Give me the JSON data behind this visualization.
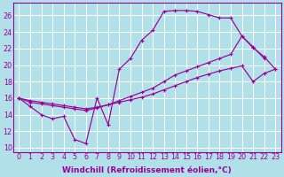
{
  "background_color": "#b2e0e8",
  "grid_color": "#ffffff",
  "line_color": "#990099",
  "xlabel": "Windchill (Refroidissement éolien,°C)",
  "xlabel_fontsize": 6.5,
  "tick_fontsize": 5.8,
  "xlim": [
    -0.5,
    23.5
  ],
  "ylim": [
    9.5,
    27.5
  ],
  "xticks": [
    0,
    1,
    2,
    3,
    4,
    5,
    6,
    7,
    8,
    9,
    10,
    11,
    12,
    13,
    14,
    15,
    16,
    17,
    18,
    19,
    20,
    21,
    22,
    23
  ],
  "yticks": [
    10,
    12,
    14,
    16,
    18,
    20,
    22,
    24,
    26
  ],
  "series1_x": [
    0,
    1,
    2,
    3,
    4,
    5,
    6,
    7,
    8,
    9,
    10,
    11,
    12,
    13,
    14,
    15,
    16,
    17,
    18,
    19,
    20,
    21,
    22
  ],
  "series1_y": [
    16.0,
    15.0,
    14.0,
    13.5,
    13.8,
    11.0,
    10.5,
    16.0,
    12.8,
    19.5,
    20.8,
    23.0,
    24.2,
    26.5,
    26.6,
    26.6,
    26.5,
    26.1,
    25.7,
    25.7,
    23.5,
    22.2,
    20.8
  ],
  "series2_x": [
    0,
    1,
    2,
    3,
    4,
    5,
    6,
    7,
    8,
    9,
    10,
    11,
    12,
    13,
    14,
    15,
    16,
    17,
    18,
    19,
    20,
    21,
    22,
    23
  ],
  "series2_y": [
    16.0,
    15.5,
    15.3,
    15.1,
    14.9,
    14.7,
    14.5,
    14.8,
    15.2,
    15.7,
    16.2,
    16.7,
    17.2,
    18.0,
    18.8,
    19.3,
    19.8,
    20.3,
    20.8,
    21.3,
    23.5,
    22.1,
    21.0,
    19.5
  ],
  "series3_x": [
    0,
    1,
    2,
    3,
    4,
    5,
    6,
    7,
    8,
    9,
    10,
    11,
    12,
    13,
    14,
    15,
    16,
    17,
    18,
    19,
    20,
    21,
    22,
    23
  ],
  "series3_y": [
    16.0,
    15.7,
    15.5,
    15.3,
    15.1,
    14.9,
    14.7,
    14.9,
    15.2,
    15.5,
    15.8,
    16.1,
    16.5,
    17.0,
    17.5,
    18.0,
    18.5,
    18.9,
    19.3,
    19.6,
    19.9,
    18.0,
    19.0,
    19.5
  ]
}
